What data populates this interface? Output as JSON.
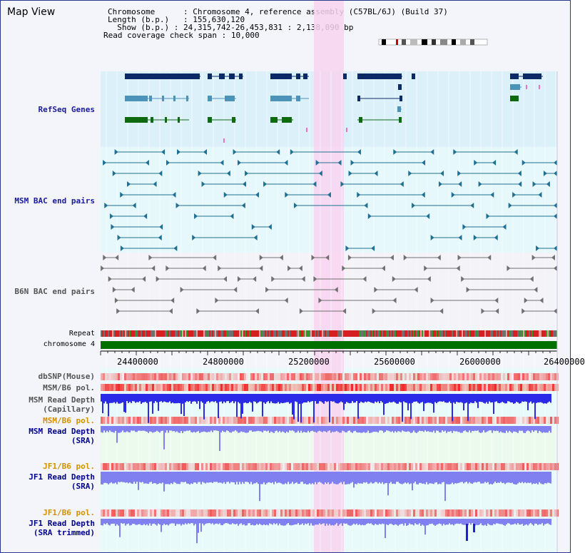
{
  "app": {
    "title": "Map View"
  },
  "info": {
    "chromosome_key": "Chromosome",
    "chromosome_val": "Chromosome 4, reference assembly (C57BL/6J) (Build 37)",
    "length_key": "Length (b.p.)",
    "length_val": "155,630,120",
    "show_key": "Show (b.p.)",
    "show_val": "24,315,742-26,453,831 : 2,138,090 bp",
    "coverage_key": "Read coverage check span",
    "coverage_val": "10,000"
  },
  "tracks": {
    "refseq": "RefSeq Genes",
    "msm_bac": "MSM BAC end pairs",
    "b6n_bac": "B6N BAC end pairs",
    "repeat": "Repeat",
    "chromosome": "chromosome 4",
    "dbsnp": "dbSNP(Mouse)",
    "msm_b6_pol": "MSM/B6 pol.",
    "msm_read_depth_cap_1": "MSM Read Depth",
    "msm_read_depth_cap_2": "(Capillary)",
    "msm_b6_pol_2": "MSM/B6 pol.",
    "msm_read_depth_sra_1": "MSM Read Depth",
    "msm_read_depth_sra_2": "(SRA)",
    "jf1_b6_pol": "JF1/B6 pol.",
    "jf1_read_depth_1": "JF1 Read Depth",
    "jf1_read_depth_2": "(SRA)",
    "jf1_b6_pol_2": "JF1/B6 pol.",
    "jf1_read_depth_trim_1": "JF1 Read Depth",
    "jf1_read_depth_trim_2": "(SRA trimmed)"
  },
  "axis": {
    "ticks": [
      "24400000",
      "24800000",
      "25200000",
      "25600000",
      "26000000",
      "26400000"
    ]
  },
  "colors": {
    "refseq_bg": "#dcf0fa",
    "bac_bg": "#e6f8fc",
    "highlight": "#f8d4f0",
    "gene_dark": "#0b2a66",
    "gene_mid": "#4b93b8",
    "gene_green": "#0e6a10",
    "bac_teal": "#1f7093",
    "bac_gray": "#707070",
    "chrom_green": "#007000",
    "depth_blue": "#2a2ae8",
    "depth_light": "#8080f0",
    "pol_red": "#f03030"
  }
}
